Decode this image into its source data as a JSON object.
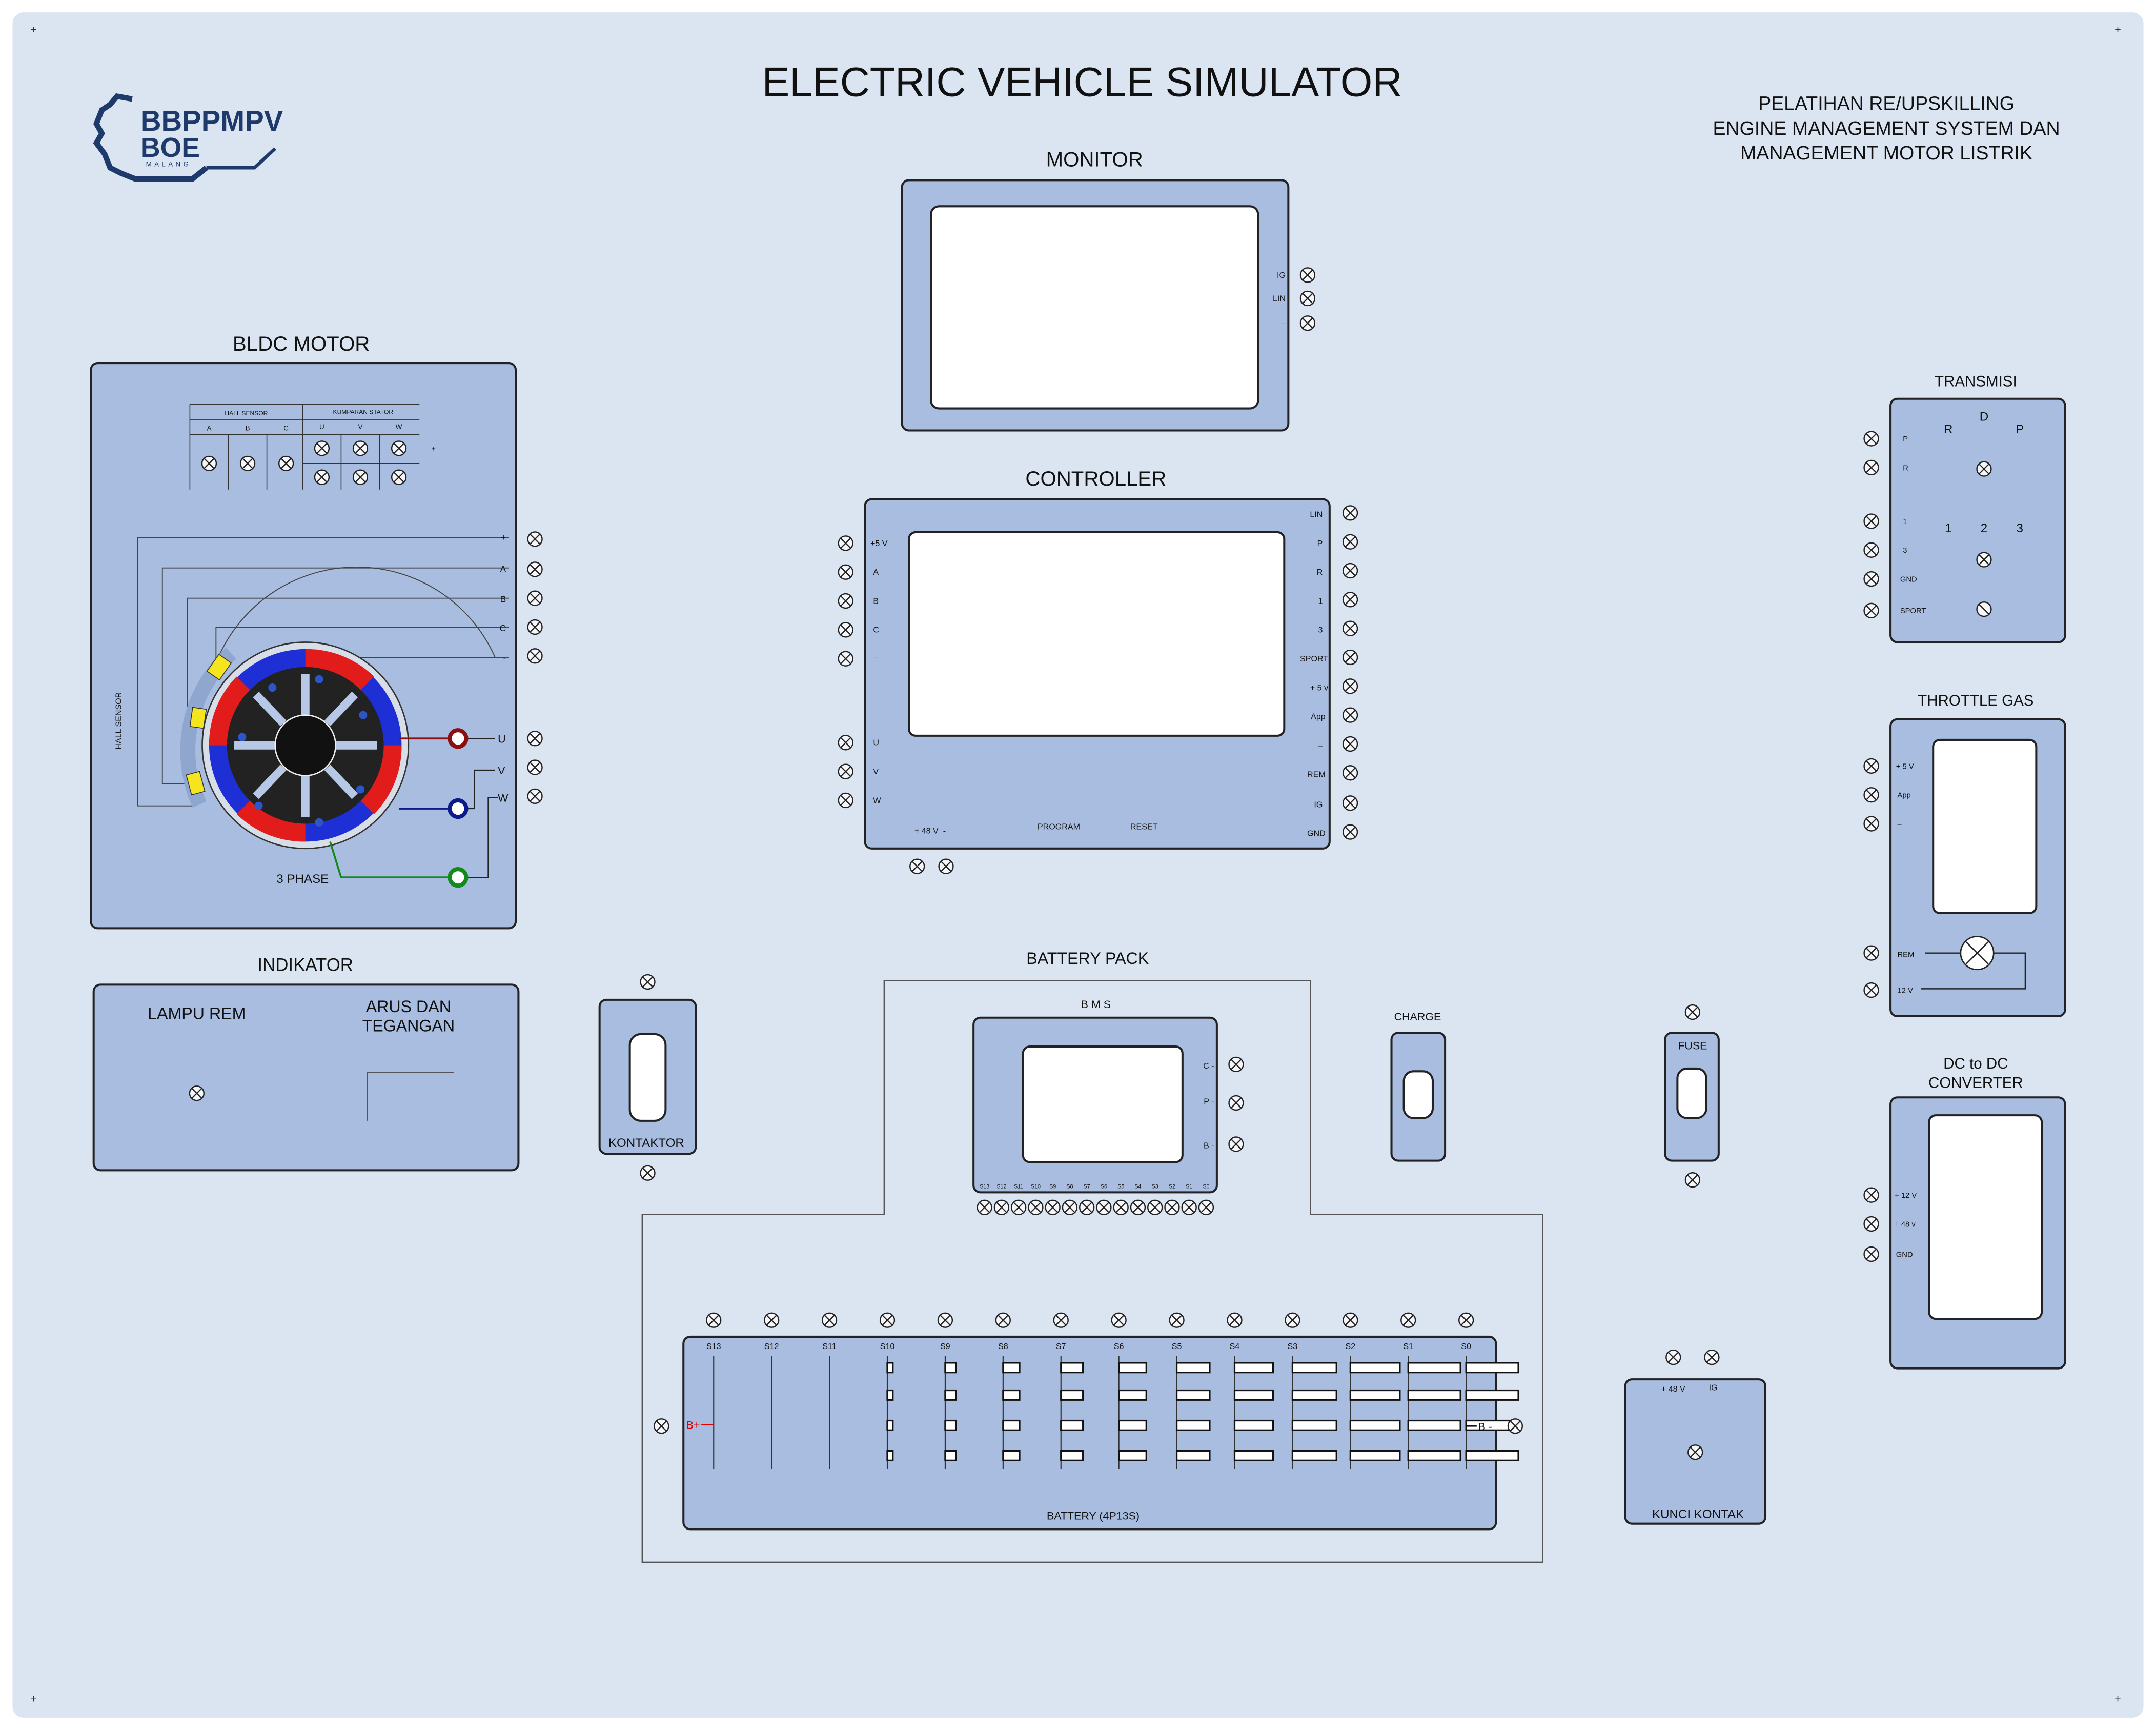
{
  "header": {
    "title": "ELECTRIC VEHICLE SIMULATOR",
    "logo_line1": "BBPPMPV",
    "logo_line2": "BOE",
    "logo_line3": "MALANG",
    "course_lines": [
      "PELATIHAN RE/UPSKILLING",
      "ENGINE MANAGEMENT SYSTEM DAN",
      "MANAGEMENT MOTOR LISTRIK"
    ]
  },
  "monitor": {
    "title": "MONITOR",
    "pins": [
      "IG",
      "LIN",
      "–"
    ]
  },
  "controller": {
    "title": "CONTROLLER",
    "left_pins": [
      "+5 V",
      "A",
      "B",
      "C",
      "–"
    ],
    "left_pins_bottom": [
      "U",
      "V",
      "W"
    ],
    "right_pins": [
      "LIN",
      "P",
      "R",
      "1",
      "3",
      "SPORT",
      "+ 5 v",
      "App",
      "–",
      "REM",
      "IG",
      "GND"
    ],
    "bottom_power": "+ 48 V  -",
    "program": "PROGRAM",
    "reset": "RESET"
  },
  "motor": {
    "title": "BLDC MOTOR",
    "hall_header": "HALL SENSOR",
    "stator_header": "KUMPARAN STATOR",
    "hall_cols": [
      "A",
      "B",
      "C"
    ],
    "stator_cols": [
      "U",
      "V",
      "W"
    ],
    "row_signs": [
      "+",
      "–"
    ],
    "line_labels": [
      "+",
      "A",
      "B",
      "C",
      "-"
    ],
    "phase_labels": [
      "U",
      "V",
      "W"
    ],
    "hall_sensor_label": "HALL SENSOR",
    "three_phase": "3 PHASE"
  },
  "indikator": {
    "title": "INDIKATOR",
    "lamp": "LAMPU REM",
    "meter_line1": "ARUS DAN",
    "meter_line2": "TEGANGAN"
  },
  "kontaktor": {
    "label": "KONTAKTOR"
  },
  "battery_pack": {
    "title": "BATTERY PACK",
    "bms_title": "B M S",
    "bms_pins": [
      "C -",
      "P -",
      "B -"
    ],
    "bms_cells": [
      "S13",
      "S12",
      "S11",
      "S10",
      "S9",
      "S8",
      "S7",
      "S6",
      "S5",
      "S4",
      "S3",
      "S2",
      "S1",
      "S0"
    ],
    "cell_labels": [
      "S13",
      "S12",
      "S11",
      "S10",
      "S9",
      "S8",
      "S7",
      "S6",
      "S5",
      "S4",
      "S3",
      "S2",
      "S1",
      "S0"
    ],
    "battery_label": "BATTERY (4P13S)",
    "b_plus": "B+",
    "b_minus": "B -"
  },
  "charge": {
    "label": "CHARGE"
  },
  "fuse": {
    "label": "FUSE"
  },
  "kunci": {
    "label": "KUNCI KONTAK",
    "pin_48": "+ 48 V",
    "pin_ig": "IG"
  },
  "transmisi": {
    "title": "TRANSMISI",
    "pins": [
      "P",
      "R",
      "1",
      "3",
      "GND",
      "SPORT"
    ],
    "gear_top": [
      "R",
      "D",
      "P"
    ],
    "gear_mid": [
      "1",
      "2",
      "3"
    ]
  },
  "throttle": {
    "title": "THROTTLE GAS",
    "pins": [
      "+ 5 V",
      "App",
      "–"
    ],
    "pins_bottom": [
      "REM",
      "12 V"
    ]
  },
  "dcdc": {
    "title_line1": "DC to DC",
    "title_line2": "CONVERTER",
    "pins": [
      "+ 12 V",
      "+ 48 v",
      "GND"
    ]
  },
  "colors": {
    "background": "#dbe4f1",
    "panel": "#a8bde0",
    "screen": "#ffffff",
    "stroke": "#1f1f1f",
    "logo": "#1e3a6a",
    "rotor_red": "#e21b1b",
    "rotor_blue": "#1f2fd6",
    "hall_yellow": "#f4e51e",
    "u_terminal": "#8b0f0f",
    "v_terminal": "#0d1a8b",
    "w_terminal": "#138a1c",
    "b_plus_red": "#e00000"
  }
}
